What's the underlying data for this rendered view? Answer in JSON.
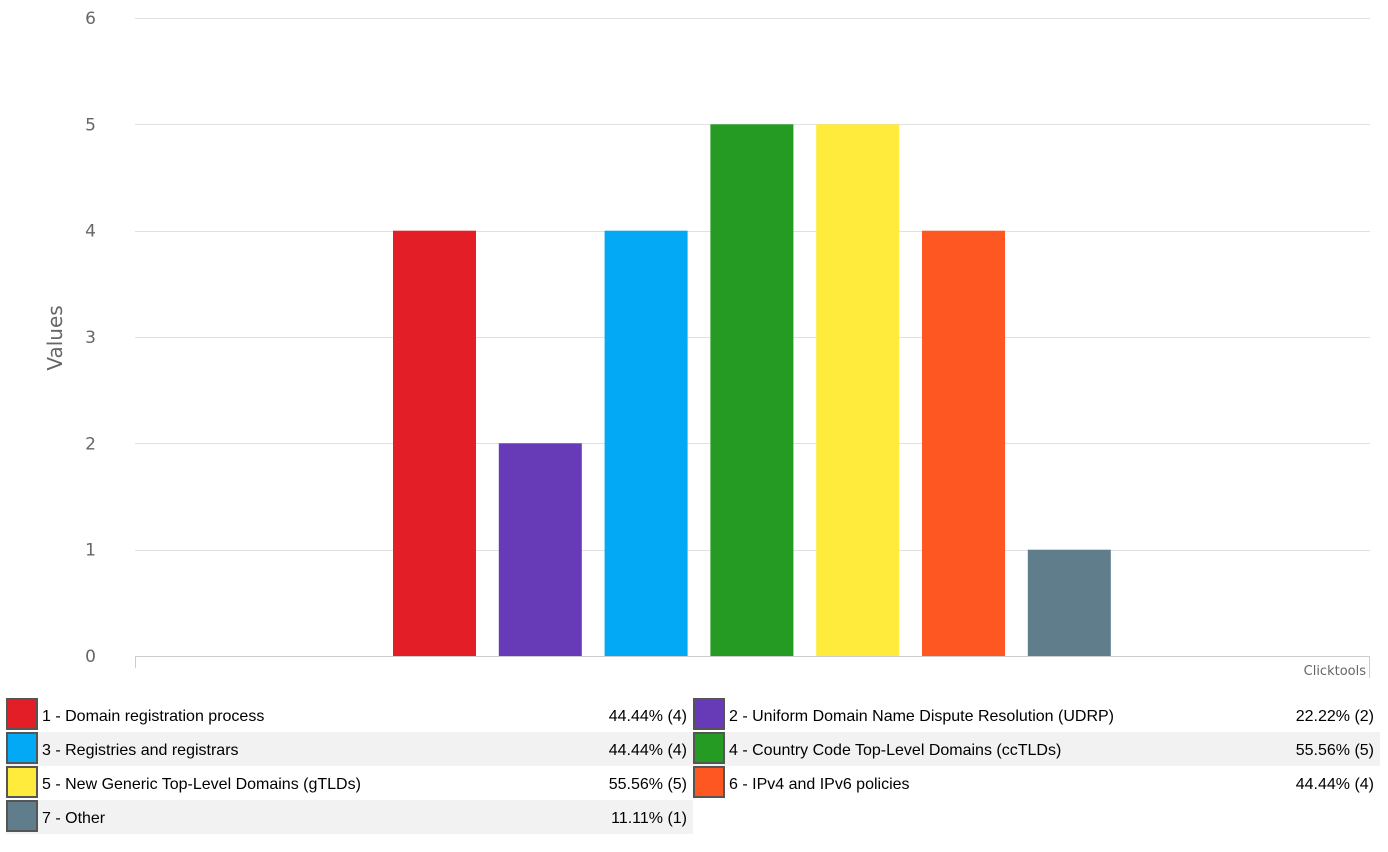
{
  "chart_data": {
    "type": "bar",
    "ylabel": "Values",
    "ylim": [
      0,
      6
    ],
    "yticks": [
      "0",
      "1",
      "2",
      "3",
      "4",
      "5",
      "6"
    ],
    "grid": true,
    "credit": "Clicktools",
    "categories": [
      "1 - Domain registration process",
      "2 - Uniform Domain Name Dispute Resolution (UDRP)",
      "3 - Registries and registrars",
      "4 - Country Code Top-Level Domains (ccTLDs)",
      "5 - New Generic Top-Level Domains (gTLDs)",
      "6 - IPv4 and IPv6 policies",
      "7 - Other"
    ],
    "values": [
      4,
      2,
      4,
      5,
      5,
      4,
      1
    ],
    "colors": [
      "#e41e26",
      "#673ab7",
      "#03a9f4",
      "#259b24",
      "#ffeb3b",
      "#ff5722",
      "#607d8b"
    ]
  },
  "legend": [
    {
      "label": "1 - Domain registration process",
      "pct": "44.44% (4)"
    },
    {
      "label": "2 - Uniform Domain Name Dispute Resolution (UDRP)",
      "pct": "22.22% (2)"
    },
    {
      "label": "3 - Registries and registrars",
      "pct": "44.44% (4)"
    },
    {
      "label": "4 - Country Code Top-Level Domains (ccTLDs)",
      "pct": "55.56% (5)"
    },
    {
      "label": "5 - New Generic Top-Level Domains (gTLDs)",
      "pct": "55.56% (5)"
    },
    {
      "label": "6 - IPv4 and IPv6 policies",
      "pct": "44.44% (4)"
    },
    {
      "label": "7 - Other",
      "pct": "11.11% (1)"
    }
  ]
}
